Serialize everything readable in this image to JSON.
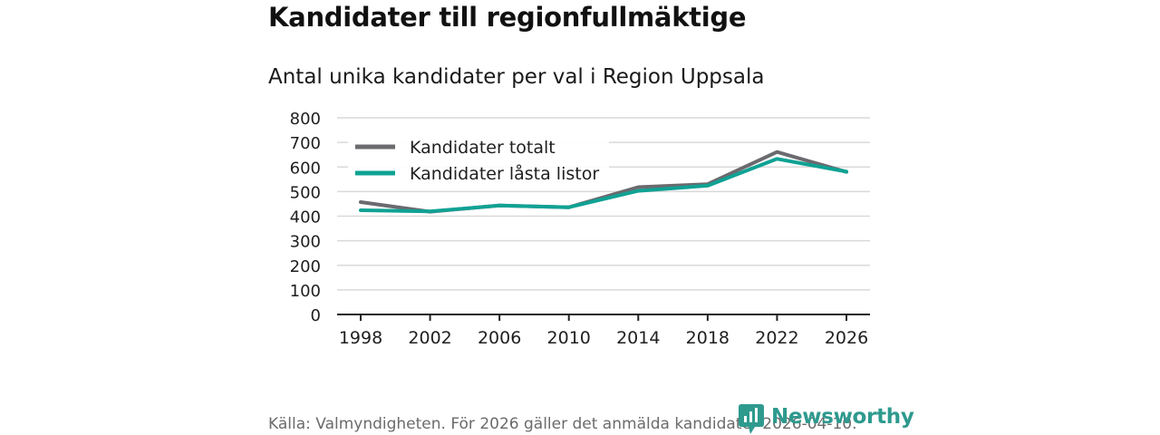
{
  "header": {
    "title": "Kandidater till regionfullmäktige",
    "subtitle": "Antal unika kandidater per val i Region Uppsala"
  },
  "footer": {
    "source": "Källa: Valmyndigheten. För 2026 gäller det anmälda kandidater 2026-04-10.",
    "brand": "Newsworthy",
    "brand_icon": "newsworthy-logo-icon"
  },
  "colors": {
    "series_total": "#6b6a6f",
    "series_locked": "#0fa294",
    "grid": "#d9d9d9",
    "axis": "#222222",
    "brand": "#2e9a8e"
  },
  "chart_data": {
    "type": "line",
    "title": "Kandidater till regionfullmäktige",
    "subtitle": "Antal unika kandidater per val i Region Uppsala",
    "xlabel": "",
    "ylabel": "",
    "x": [
      1998,
      2002,
      2006,
      2010,
      2014,
      2018,
      2022,
      2026
    ],
    "x_tick_labels": [
      "1998",
      "2002",
      "2006",
      "2010",
      "2014",
      "2018",
      "2022",
      "2026"
    ],
    "ylim": [
      0,
      800
    ],
    "y_ticks": [
      0,
      100,
      200,
      300,
      400,
      500,
      600,
      700,
      800
    ],
    "y_tick_labels": [
      "0",
      "100",
      "200",
      "300",
      "400",
      "500",
      "600",
      "700",
      "800"
    ],
    "grid": true,
    "legend_position": "top-left",
    "series": [
      {
        "name": "Kandidater totalt",
        "values": [
          457,
          418,
          443,
          436,
          518,
          530,
          661,
          580
        ]
      },
      {
        "name": "Kandidater låsta listor",
        "values": [
          424,
          419,
          443,
          436,
          503,
          524,
          633,
          581
        ]
      }
    ]
  }
}
